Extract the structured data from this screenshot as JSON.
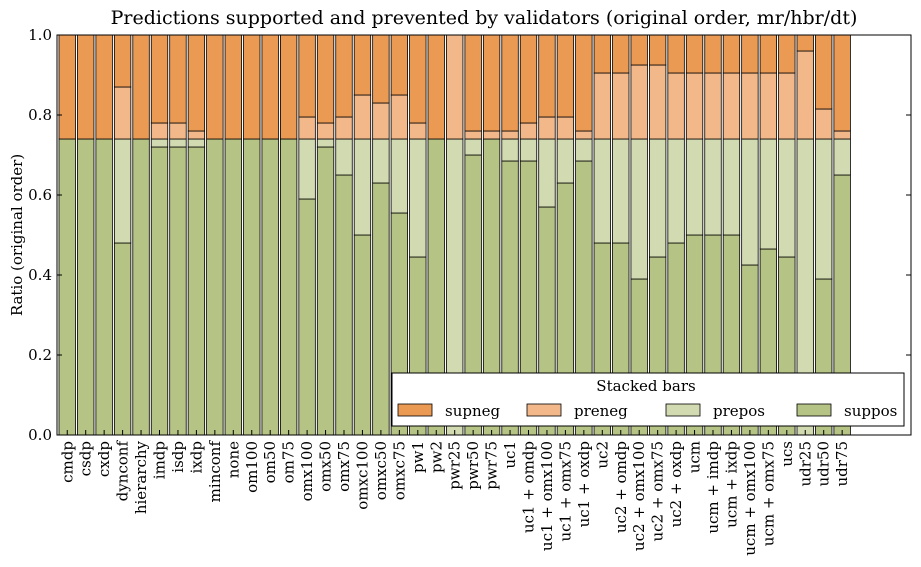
{
  "chart_data": {
    "type": "bar",
    "stacked": true,
    "title": "Predictions supported and prevented by validators (original order, mr/hbr/dt)",
    "xlabel": "",
    "ylabel": "Ratio (original order)",
    "ylim": [
      0,
      1.0
    ],
    "yticks": [
      "0.0",
      "0.2",
      "0.4",
      "0.6",
      "0.8",
      "1.0"
    ],
    "grid": false,
    "legend": {
      "title": "Stacked bars",
      "placement": "lower-right"
    },
    "categories": [
      "cmdp",
      "csdp",
      "cxdp",
      "dynconf",
      "hierarchy",
      "imdp",
      "isdp",
      "ixdp",
      "minconf",
      "none",
      "om100",
      "om50",
      "om75",
      "omx100",
      "omx50",
      "omx75",
      "omxc100",
      "omxc50",
      "omxc75",
      "pw1",
      "pw2",
      "pwr25",
      "pwr50",
      "pwr75",
      "uc1",
      "uc1 + omdp",
      "uc1 + omx100",
      "uc1 + omx75",
      "uc1 + oxdp",
      "uc2",
      "uc2 + omdp",
      "uc2 + omx100",
      "uc2 + omx75",
      "uc2 + oxdp",
      "ucm",
      "ucm + imdp",
      "ucm + ixdp",
      "ucm + omx100",
      "ucm + omx75",
      "ucs",
      "udr25",
      "udr50",
      "udr75"
    ],
    "series": [
      {
        "name": "suppos",
        "color": "#b5c385",
        "values": [
          0.74,
          0.74,
          0.74,
          0.48,
          0.74,
          0.72,
          0.72,
          0.72,
          0.74,
          0.74,
          0.74,
          0.74,
          0.74,
          0.59,
          0.72,
          0.65,
          0.5,
          0.63,
          0.555,
          0.445,
          0.74,
          0.0,
          0.7,
          0.74,
          0.685,
          0.685,
          0.57,
          0.63,
          0.685,
          0.48,
          0.48,
          0.39,
          0.445,
          0.48,
          0.5,
          0.5,
          0.5,
          0.425,
          0.465,
          0.445,
          0.0,
          0.39,
          0.65
        ]
      },
      {
        "name": "prepos",
        "color": "#d1dab0",
        "values": [
          0.0,
          0.0,
          0.0,
          0.26,
          0.0,
          0.02,
          0.02,
          0.02,
          0.0,
          0.0,
          0.0,
          0.0,
          0.0,
          0.15,
          0.02,
          0.09,
          0.24,
          0.11,
          0.185,
          0.295,
          0.0,
          0.74,
          0.04,
          0.0,
          0.055,
          0.055,
          0.17,
          0.11,
          0.055,
          0.26,
          0.26,
          0.35,
          0.295,
          0.26,
          0.24,
          0.24,
          0.24,
          0.315,
          0.275,
          0.295,
          0.74,
          0.35,
          0.09
        ]
      },
      {
        "name": "preneg",
        "color": "#f2b88a",
        "values": [
          0.0,
          0.0,
          0.0,
          0.13,
          0.0,
          0.04,
          0.04,
          0.02,
          0.0,
          0.0,
          0.0,
          0.0,
          0.0,
          0.055,
          0.04,
          0.055,
          0.11,
          0.09,
          0.11,
          0.04,
          0.0,
          0.26,
          0.02,
          0.02,
          0.02,
          0.04,
          0.055,
          0.055,
          0.02,
          0.165,
          0.165,
          0.185,
          0.185,
          0.165,
          0.165,
          0.165,
          0.165,
          0.165,
          0.165,
          0.165,
          0.22,
          0.075,
          0.02
        ]
      },
      {
        "name": "supneg",
        "color": "#eb9a54",
        "values": [
          0.26,
          0.26,
          0.26,
          0.13,
          0.26,
          0.22,
          0.22,
          0.24,
          0.26,
          0.26,
          0.26,
          0.26,
          0.26,
          0.205,
          0.22,
          0.205,
          0.15,
          0.17,
          0.15,
          0.22,
          0.26,
          0.0,
          0.24,
          0.24,
          0.24,
          0.22,
          0.205,
          0.205,
          0.24,
          0.095,
          0.095,
          0.075,
          0.075,
          0.095,
          0.095,
          0.095,
          0.095,
          0.095,
          0.095,
          0.095,
          0.04,
          0.185,
          0.24
        ]
      }
    ]
  }
}
